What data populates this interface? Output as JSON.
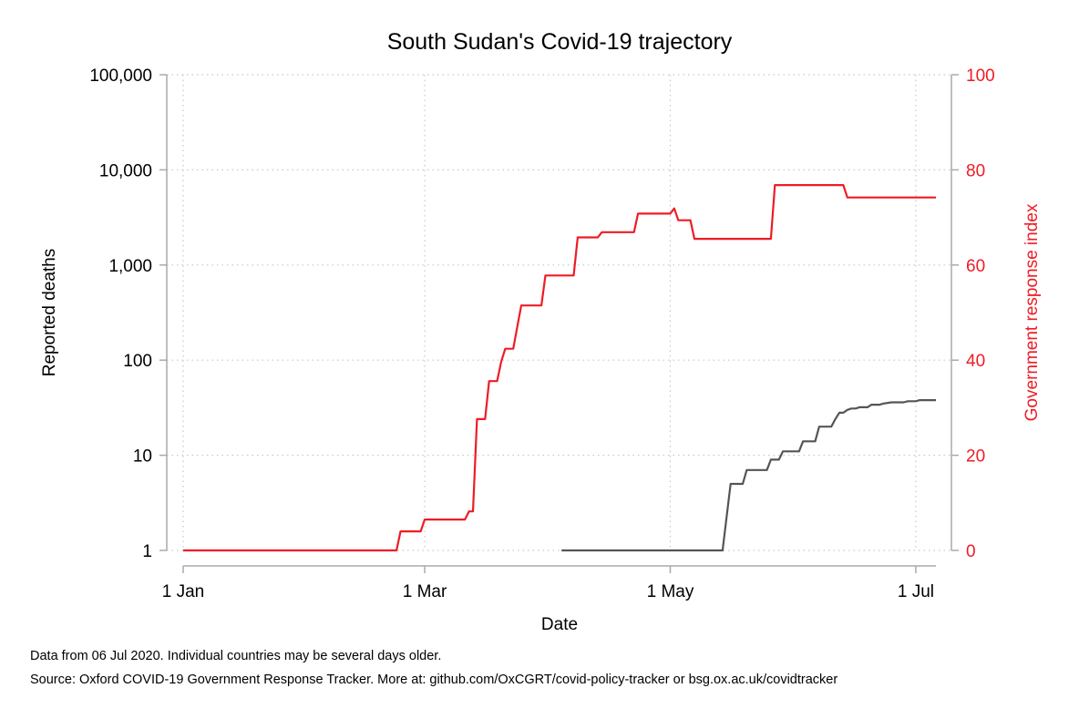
{
  "chart_data": {
    "type": "line",
    "title": "South Sudan's Covid-19 trajectory",
    "xlabel": "Date",
    "ylabel": "Reported deaths",
    "y2label": "Government response index",
    "x_ticks": [
      "1 Jan",
      "1 Mar",
      "1 May",
      "1 Jul"
    ],
    "x_tick_dates": [
      "2020-01-01",
      "2020-03-01",
      "2020-05-01",
      "2020-07-01"
    ],
    "xlim": [
      "2020-01-01",
      "2020-07-06"
    ],
    "y_scale": "log",
    "ylim": [
      1,
      100000
    ],
    "y_ticks": [
      1,
      10,
      100,
      1000,
      10000,
      100000
    ],
    "y_tick_labels": [
      "1",
      "10",
      "100",
      "1,000",
      "10,000",
      "100,000"
    ],
    "y2lim": [
      0,
      100
    ],
    "y2_ticks": [
      0,
      20,
      40,
      60,
      80,
      100
    ],
    "y2_tick_labels": [
      "0",
      "20",
      "40",
      "60",
      "80",
      "100"
    ],
    "grid": true,
    "colors": {
      "deaths": "#555555",
      "response": "#ee1c25",
      "axis": "#aaaaaa",
      "grid": "#c8c8c8"
    },
    "series": [
      {
        "key": "deaths",
        "axis": "left",
        "points": [
          [
            "2020-04-04",
            1
          ],
          [
            "2020-05-14",
            1
          ],
          [
            "2020-05-16",
            5
          ],
          [
            "2020-05-19",
            5
          ],
          [
            "2020-05-20",
            7
          ],
          [
            "2020-05-25",
            7
          ],
          [
            "2020-05-26",
            9
          ],
          [
            "2020-05-28",
            9
          ],
          [
            "2020-05-29",
            11
          ],
          [
            "2020-06-02",
            11
          ],
          [
            "2020-06-03",
            14
          ],
          [
            "2020-06-06",
            14
          ],
          [
            "2020-06-07",
            20
          ],
          [
            "2020-06-10",
            20
          ],
          [
            "2020-06-11",
            24
          ],
          [
            "2020-06-12",
            28
          ],
          [
            "2020-06-13",
            28
          ],
          [
            "2020-06-14",
            30
          ],
          [
            "2020-06-15",
            31
          ],
          [
            "2020-06-16",
            31
          ],
          [
            "2020-06-17",
            32
          ],
          [
            "2020-06-19",
            32
          ],
          [
            "2020-06-20",
            34
          ],
          [
            "2020-06-22",
            34
          ],
          [
            "2020-06-23",
            35
          ],
          [
            "2020-06-25",
            36
          ],
          [
            "2020-06-28",
            36
          ],
          [
            "2020-06-29",
            37
          ],
          [
            "2020-07-01",
            37
          ],
          [
            "2020-07-02",
            38
          ],
          [
            "2020-07-06",
            38
          ]
        ]
      },
      {
        "key": "response",
        "axis": "right",
        "points": [
          [
            "2020-01-01",
            0
          ],
          [
            "2020-02-23",
            0
          ],
          [
            "2020-02-24",
            4
          ],
          [
            "2020-02-29",
            4
          ],
          [
            "2020-03-01",
            6.5
          ],
          [
            "2020-03-11",
            6.5
          ],
          [
            "2020-03-12",
            8.2
          ],
          [
            "2020-03-13",
            8.2
          ],
          [
            "2020-03-14",
            27.6
          ],
          [
            "2020-03-16",
            27.6
          ],
          [
            "2020-03-17",
            35.6
          ],
          [
            "2020-03-19",
            35.6
          ],
          [
            "2020-03-20",
            39.7
          ],
          [
            "2020-03-21",
            42.4
          ],
          [
            "2020-03-23",
            42.4
          ],
          [
            "2020-03-24",
            47
          ],
          [
            "2020-03-25",
            51.5
          ],
          [
            "2020-03-30",
            51.5
          ],
          [
            "2020-03-31",
            57.8
          ],
          [
            "2020-04-07",
            57.8
          ],
          [
            "2020-04-08",
            65.8
          ],
          [
            "2020-04-13",
            65.8
          ],
          [
            "2020-04-14",
            66.9
          ],
          [
            "2020-04-22",
            66.9
          ],
          [
            "2020-04-23",
            70.8
          ],
          [
            "2020-05-01",
            70.8
          ],
          [
            "2020-05-02",
            71.9
          ],
          [
            "2020-05-03",
            69.4
          ],
          [
            "2020-05-06",
            69.4
          ],
          [
            "2020-05-07",
            65.5
          ],
          [
            "2020-05-26",
            65.5
          ],
          [
            "2020-05-27",
            76.8
          ],
          [
            "2020-06-13",
            76.8
          ],
          [
            "2020-06-14",
            74.2
          ],
          [
            "2020-07-06",
            74.2
          ]
        ]
      }
    ]
  },
  "footnotes": {
    "line1": "Data from 06 Jul 2020. Individual countries may be several days older.",
    "line2": "Source: Oxford COVID-19 Government Response Tracker. More at: github.com/OxCGRT/covid-policy-tracker or bsg.ox.ac.uk/covidtracker"
  }
}
